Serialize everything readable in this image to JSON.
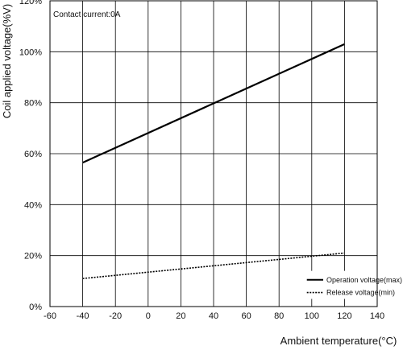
{
  "chart_data": {
    "type": "line",
    "title": "",
    "annotation": "Contact current:0A",
    "xlabel": "Ambient temperature(°C)",
    "ylabel": "Coil applied voltage(%V)",
    "xlim": [
      -60,
      140
    ],
    "ylim": [
      0,
      120
    ],
    "x_ticks": [
      -60,
      -40,
      -20,
      0,
      20,
      40,
      60,
      80,
      100,
      120,
      140
    ],
    "x_tick_labels": [
      "-60",
      "-40",
      "-20",
      "0",
      "20",
      "40",
      "60",
      "80",
      "100",
      "120",
      "140"
    ],
    "y_ticks": [
      0,
      20,
      40,
      60,
      80,
      100,
      120
    ],
    "y_tick_labels": [
      "0%",
      "20%",
      "40%",
      "60%",
      "80%",
      "100%",
      "120%"
    ],
    "grid": true,
    "legend_position": "bottom-right",
    "series": [
      {
        "name": "Operation voltage(max)",
        "style": "solid",
        "color": "#000000",
        "x": [
          -40,
          120
        ],
        "y": [
          56.5,
          103
        ]
      },
      {
        "name": "Release voltage(min)",
        "style": "dashed",
        "color": "#000000",
        "x": [
          -40,
          120
        ],
        "y": [
          11,
          21
        ]
      }
    ]
  }
}
